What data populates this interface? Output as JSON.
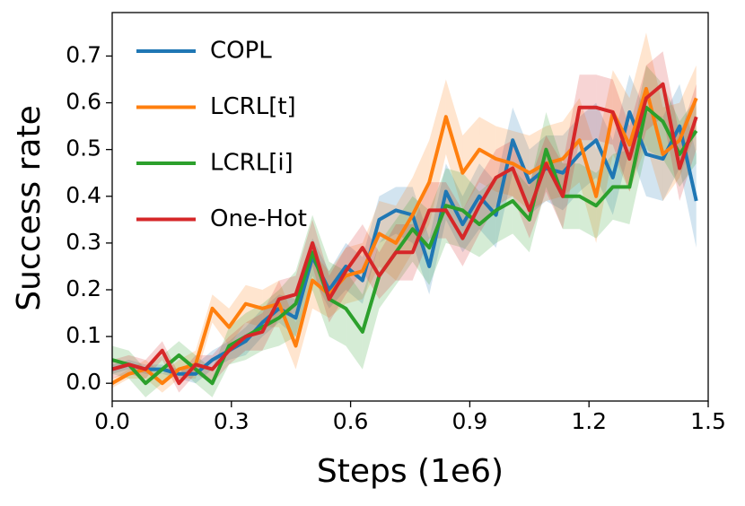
{
  "chart_data": {
    "type": "line",
    "xlabel": "Steps (1e6)",
    "ylabel": "Success rate",
    "x": [
      0,
      0.042,
      0.084,
      0.126,
      0.168,
      0.21,
      0.252,
      0.294,
      0.336,
      0.378,
      0.42,
      0.462,
      0.504,
      0.546,
      0.588,
      0.63,
      0.672,
      0.714,
      0.756,
      0.798,
      0.84,
      0.882,
      0.924,
      0.966,
      1.008,
      1.05,
      1.092,
      1.134,
      1.176,
      1.218,
      1.26,
      1.302,
      1.344,
      1.386,
      1.428,
      1.47
    ],
    "series": [
      {
        "name": "COPL",
        "color": "#1f77b4",
        "values": [
          0.03,
          0.04,
          0.03,
          0.03,
          0.02,
          0.02,
          0.05,
          0.07,
          0.09,
          0.13,
          0.16,
          0.14,
          0.27,
          0.2,
          0.25,
          0.22,
          0.35,
          0.37,
          0.36,
          0.25,
          0.41,
          0.34,
          0.4,
          0.36,
          0.52,
          0.43,
          0.46,
          0.45,
          0.49,
          0.52,
          0.44,
          0.58,
          0.49,
          0.48,
          0.55,
          0.39
        ],
        "errors": [
          0.01,
          0.01,
          0.01,
          0.01,
          0.01,
          0.02,
          0.02,
          0.02,
          0.03,
          0.03,
          0.03,
          0.04,
          0.04,
          0.04,
          0.05,
          0.05,
          0.05,
          0.05,
          0.06,
          0.06,
          0.06,
          0.06,
          0.07,
          0.07,
          0.07,
          0.07,
          0.07,
          0.08,
          0.08,
          0.08,
          0.08,
          0.08,
          0.09,
          0.09,
          0.09,
          0.1
        ]
      },
      {
        "name": "LCRL[t]",
        "color": "#ff7f0e",
        "values": [
          0.0,
          0.02,
          0.03,
          0.0,
          0.03,
          0.04,
          0.16,
          0.12,
          0.17,
          0.16,
          0.17,
          0.08,
          0.22,
          0.19,
          0.23,
          0.24,
          0.32,
          0.3,
          0.36,
          0.43,
          0.57,
          0.45,
          0.5,
          0.48,
          0.47,
          0.45,
          0.47,
          0.48,
          0.52,
          0.4,
          0.58,
          0.51,
          0.63,
          0.49,
          0.52,
          0.61
        ],
        "errors": [
          0.01,
          0.01,
          0.02,
          0.02,
          0.02,
          0.03,
          0.03,
          0.04,
          0.04,
          0.04,
          0.05,
          0.05,
          0.06,
          0.05,
          0.06,
          0.06,
          0.07,
          0.08,
          0.08,
          0.09,
          0.08,
          0.08,
          0.07,
          0.07,
          0.07,
          0.08,
          0.08,
          0.08,
          0.09,
          0.1,
          0.09,
          0.1,
          0.12,
          0.1,
          0.08,
          0.07
        ]
      },
      {
        "name": "LCRL[i]",
        "color": "#2ca02c",
        "values": [
          0.05,
          0.04,
          0.0,
          0.03,
          0.06,
          0.03,
          0.0,
          0.08,
          0.1,
          0.12,
          0.14,
          0.17,
          0.28,
          0.18,
          0.16,
          0.11,
          0.23,
          0.28,
          0.33,
          0.29,
          0.38,
          0.37,
          0.34,
          0.37,
          0.39,
          0.35,
          0.5,
          0.4,
          0.4,
          0.38,
          0.42,
          0.42,
          0.59,
          0.56,
          0.49,
          0.54
        ],
        "errors": [
          0.03,
          0.03,
          0.03,
          0.03,
          0.03,
          0.03,
          0.03,
          0.04,
          0.05,
          0.05,
          0.06,
          0.07,
          0.08,
          0.08,
          0.08,
          0.08,
          0.07,
          0.07,
          0.07,
          0.08,
          0.08,
          0.08,
          0.07,
          0.07,
          0.07,
          0.07,
          0.08,
          0.07,
          0.07,
          0.07,
          0.07,
          0.08,
          0.09,
          0.08,
          0.07,
          0.07
        ]
      },
      {
        "name": "One-Hot",
        "color": "#d62728",
        "values": [
          0.03,
          0.04,
          0.03,
          0.07,
          0.0,
          0.04,
          0.03,
          0.07,
          0.1,
          0.11,
          0.18,
          0.19,
          0.3,
          0.18,
          0.24,
          0.29,
          0.23,
          0.28,
          0.28,
          0.37,
          0.37,
          0.31,
          0.38,
          0.44,
          0.46,
          0.37,
          0.47,
          0.4,
          0.59,
          0.59,
          0.58,
          0.48,
          0.61,
          0.64,
          0.46,
          0.57
        ],
        "errors": [
          0.02,
          0.02,
          0.02,
          0.02,
          0.02,
          0.02,
          0.03,
          0.03,
          0.03,
          0.04,
          0.04,
          0.04,
          0.05,
          0.05,
          0.05,
          0.05,
          0.05,
          0.06,
          0.06,
          0.06,
          0.06,
          0.06,
          0.06,
          0.06,
          0.06,
          0.06,
          0.06,
          0.07,
          0.07,
          0.07,
          0.07,
          0.07,
          0.07,
          0.07,
          0.07,
          0.07
        ]
      }
    ],
    "xlim": [
      0,
      1.5
    ],
    "ylim": [
      -0.038,
      0.793
    ],
    "xticks": [
      {
        "value": 0,
        "label": "0.0"
      },
      0.3,
      0.6,
      0.9,
      1.2,
      1.5
    ],
    "yticks": [
      {
        "value": 0,
        "label": "0.0"
      },
      0.1,
      0.2,
      0.3,
      0.4,
      0.5,
      0.6,
      0.7
    ],
    "legend": "upper left",
    "grid": false
  }
}
